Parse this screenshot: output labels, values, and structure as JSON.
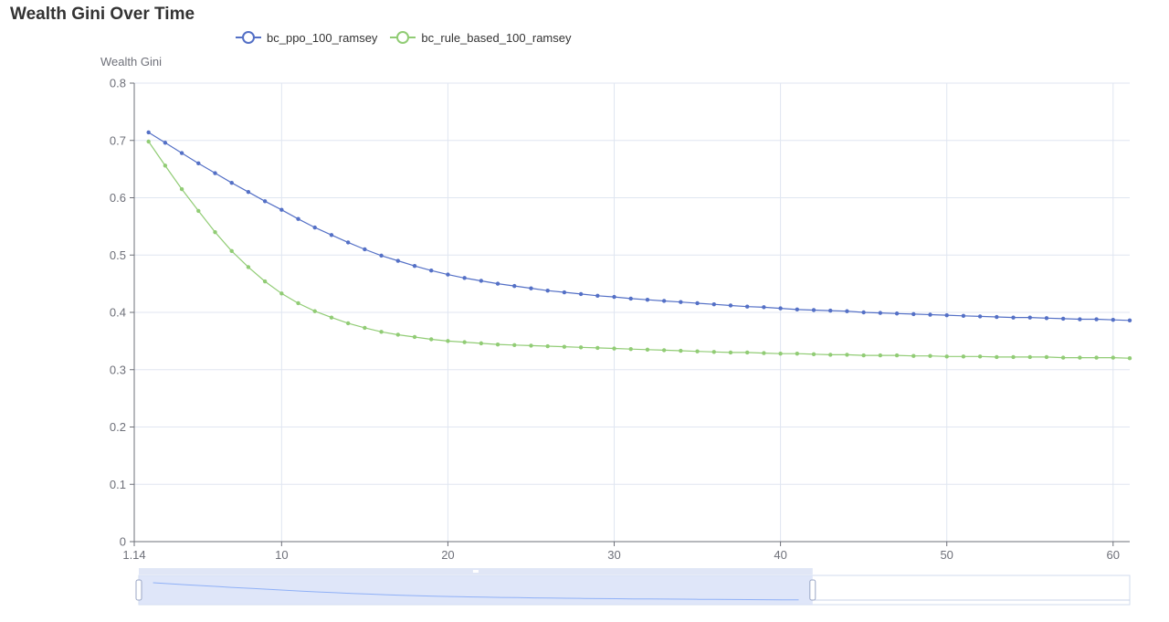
{
  "title": "Wealth Gini Over Time",
  "colors": {
    "series_0": "#5470c6",
    "series_1": "#91cc75",
    "grid": "#e0e6f1",
    "axis": "#6e7079",
    "zoom_fill": "#d4ddf7",
    "zoom_border": "#8fb0f7"
  },
  "chart_data": {
    "type": "line",
    "title": "Wealth Gini Over Time",
    "xlabel": "",
    "ylabel": "Wealth Gini",
    "xlim": [
      1.14,
      61
    ],
    "ylim": [
      0,
      0.8
    ],
    "x_ticks": [
      "1.14",
      "10",
      "20",
      "30",
      "40",
      "50",
      "60"
    ],
    "y_ticks": [
      "0",
      "0.1",
      "0.2",
      "0.3",
      "0.4",
      "0.5",
      "0.6",
      "0.7",
      "0.8"
    ],
    "grid": true,
    "legend_position": "top-left",
    "x": [
      2,
      3,
      4,
      5,
      6,
      7,
      8,
      9,
      10,
      11,
      12,
      13,
      14,
      15,
      16,
      17,
      18,
      19,
      20,
      21,
      22,
      23,
      24,
      25,
      26,
      27,
      28,
      29,
      30,
      31,
      32,
      33,
      34,
      35,
      36,
      37,
      38,
      39,
      40,
      41,
      42,
      43,
      44,
      45,
      46,
      47,
      48,
      49,
      50,
      51,
      52,
      53,
      54,
      55,
      56,
      57,
      58,
      59,
      60,
      61
    ],
    "series": [
      {
        "name": "bc_ppo_100_ramsey",
        "color": "#5470c6",
        "values": [
          0.714,
          0.696,
          0.678,
          0.66,
          0.643,
          0.626,
          0.61,
          0.594,
          0.579,
          0.563,
          0.548,
          0.535,
          0.522,
          0.51,
          0.499,
          0.49,
          0.481,
          0.473,
          0.466,
          0.46,
          0.455,
          0.45,
          0.446,
          0.442,
          0.438,
          0.435,
          0.432,
          0.429,
          0.427,
          0.424,
          0.422,
          0.42,
          0.418,
          0.416,
          0.414,
          0.412,
          0.41,
          0.409,
          0.407,
          0.405,
          0.404,
          0.403,
          0.402,
          0.4,
          0.399,
          0.398,
          0.397,
          0.396,
          0.395,
          0.394,
          0.393,
          0.392,
          0.391,
          0.391,
          0.39,
          0.389,
          0.388,
          0.388,
          0.387,
          0.386
        ]
      },
      {
        "name": "bc_rule_based_100_ramsey",
        "color": "#91cc75",
        "values": [
          0.698,
          0.656,
          0.615,
          0.577,
          0.54,
          0.507,
          0.479,
          0.454,
          0.433,
          0.416,
          0.402,
          0.391,
          0.381,
          0.373,
          0.366,
          0.361,
          0.357,
          0.353,
          0.35,
          0.348,
          0.346,
          0.344,
          0.343,
          0.342,
          0.341,
          0.34,
          0.339,
          0.338,
          0.337,
          0.336,
          0.335,
          0.334,
          0.333,
          0.332,
          0.331,
          0.33,
          0.33,
          0.329,
          0.328,
          0.328,
          0.327,
          0.326,
          0.326,
          0.325,
          0.325,
          0.325,
          0.324,
          0.324,
          0.323,
          0.323,
          0.323,
          0.322,
          0.322,
          0.322,
          0.322,
          0.321,
          0.321,
          0.321,
          0.321,
          0.32
        ]
      }
    ],
    "data_zoom": {
      "start_fraction": 0.0,
      "end_fraction": 0.68
    }
  }
}
